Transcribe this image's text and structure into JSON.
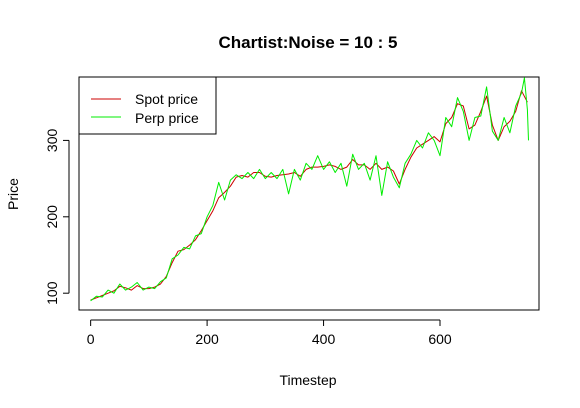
{
  "chart_data": {
    "type": "line",
    "title": "Chartist:Noise = 10 : 5",
    "xlabel": "Timestep",
    "ylabel": "Price",
    "xlim": [
      -20,
      770
    ],
    "ylim": [
      78,
      383
    ],
    "x_ticks": [
      0,
      200,
      400,
      600
    ],
    "y_ticks": [
      100,
      200,
      300
    ],
    "legend": {
      "position": "top-left",
      "boxed": true
    },
    "grid": false,
    "series": [
      {
        "name": "Spot price",
        "color": "#cc0000",
        "x": [
          0,
          10,
          20,
          30,
          40,
          50,
          60,
          70,
          80,
          90,
          100,
          110,
          120,
          130,
          140,
          150,
          160,
          170,
          180,
          190,
          200,
          210,
          220,
          230,
          240,
          250,
          260,
          270,
          280,
          290,
          300,
          310,
          320,
          330,
          340,
          350,
          360,
          370,
          380,
          390,
          400,
          410,
          420,
          430,
          440,
          450,
          460,
          470,
          480,
          490,
          500,
          510,
          520,
          530,
          540,
          550,
          560,
          570,
          580,
          590,
          600,
          610,
          620,
          630,
          640,
          650,
          660,
          670,
          680,
          690,
          700,
          710,
          720,
          730,
          740,
          750
        ],
        "values": [
          91,
          94,
          97,
          100,
          103,
          109,
          107,
          104,
          110,
          106,
          106,
          108,
          112,
          122,
          140,
          155,
          157,
          163,
          170,
          182,
          195,
          208,
          225,
          232,
          240,
          252,
          254,
          252,
          258,
          258,
          253,
          252,
          254,
          255,
          256,
          258,
          253,
          262,
          265,
          265,
          266,
          268,
          266,
          262,
          265,
          275,
          268,
          268,
          262,
          270,
          262,
          265,
          260,
          243,
          262,
          278,
          290,
          295,
          300,
          305,
          298,
          322,
          330,
          348,
          345,
          315,
          320,
          338,
          358,
          320,
          300,
          318,
          325,
          338,
          365,
          350
        ]
      },
      {
        "name": "Perp price",
        "color": "#00ee00",
        "x": [
          0,
          10,
          20,
          30,
          40,
          50,
          60,
          70,
          80,
          90,
          100,
          110,
          120,
          130,
          140,
          150,
          160,
          170,
          180,
          190,
          200,
          210,
          220,
          230,
          240,
          250,
          260,
          270,
          280,
          290,
          300,
          310,
          320,
          330,
          340,
          350,
          360,
          370,
          380,
          390,
          400,
          410,
          420,
          430,
          440,
          450,
          460,
          470,
          480,
          490,
          500,
          510,
          520,
          530,
          540,
          550,
          560,
          570,
          580,
          590,
          600,
          610,
          620,
          630,
          640,
          650,
          660,
          670,
          680,
          690,
          700,
          710,
          720,
          730,
          740,
          745,
          750,
          752
        ],
        "values": [
          90,
          96,
          95,
          104,
          100,
          112,
          104,
          108,
          114,
          104,
          108,
          106,
          115,
          120,
          145,
          150,
          160,
          158,
          175,
          178,
          200,
          215,
          245,
          222,
          248,
          255,
          250,
          258,
          250,
          262,
          250,
          258,
          250,
          262,
          230,
          262,
          248,
          270,
          262,
          280,
          262,
          272,
          258,
          270,
          240,
          282,
          262,
          270,
          248,
          280,
          228,
          272,
          252,
          238,
          270,
          282,
          300,
          290,
          310,
          300,
          280,
          330,
          318,
          356,
          338,
          300,
          330,
          332,
          370,
          312,
          300,
          330,
          310,
          345,
          362,
          382,
          340,
          300
        ]
      }
    ]
  }
}
